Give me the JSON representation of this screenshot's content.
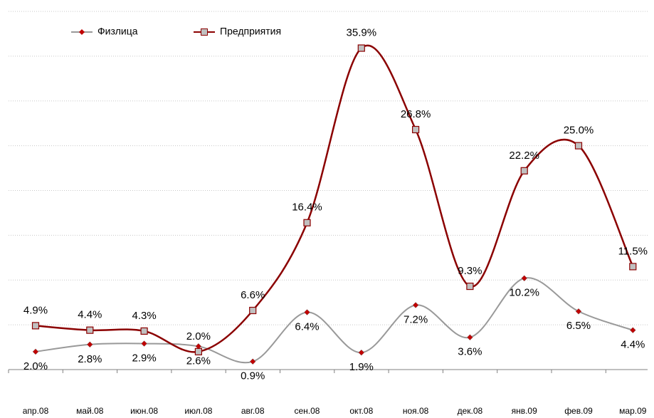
{
  "chart_data": {
    "type": "line",
    "categories": [
      "апр.08",
      "май.08",
      "июн.08",
      "июл.08",
      "авг.08",
      "сен.08",
      "окт.08",
      "ноя.08",
      "дек.08",
      "янв.09",
      "фев.09",
      "мар.09"
    ],
    "series": [
      {
        "name": "Физлица",
        "color": "#999999",
        "marker_color": "#c00000",
        "values": [
          2.0,
          2.8,
          2.9,
          2.6,
          0.9,
          6.4,
          1.9,
          7.2,
          3.6,
          10.2,
          6.5,
          4.4
        ],
        "value_labels": [
          "2.0%",
          "2.8%",
          "2.9%",
          "2.6%",
          "0.9%",
          "6.4%",
          "1.9%",
          "7.2%",
          "3.6%",
          "10.2%",
          "6.5%",
          "4.4%"
        ]
      },
      {
        "name": "Предприятия",
        "color": "#8b0000",
        "marker_color": "#c0c0c0",
        "values": [
          4.9,
          4.4,
          4.3,
          2.0,
          6.6,
          16.4,
          35.9,
          26.8,
          9.3,
          22.2,
          25.0,
          11.5
        ],
        "value_labels": [
          "4.9%",
          "4.4%",
          "4.3%",
          "2.0%",
          "6.6%",
          "16.4%",
          "35.9%",
          "26.8%",
          "9.3%",
          "22.2%",
          "25.0%",
          "11.5%"
        ]
      }
    ],
    "ylim": [
      0,
      40
    ],
    "yticks": [
      0,
      5,
      10,
      15,
      20,
      25,
      30,
      35,
      40
    ],
    "grid": true,
    "legend": "top-left"
  }
}
